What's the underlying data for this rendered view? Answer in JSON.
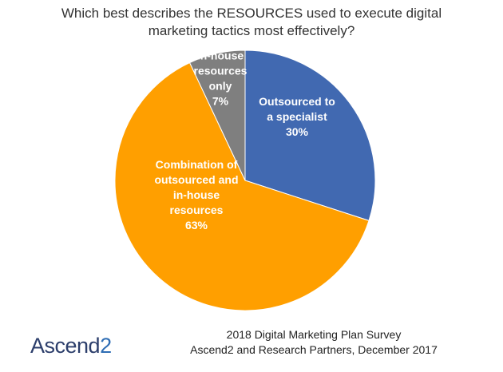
{
  "title_lines": [
    "Which best describes the RESOURCES used to execute digital",
    "marketing tactics most effectively?"
  ],
  "chart_data": {
    "type": "pie",
    "start_angle_deg": 0,
    "direction": "clockwise",
    "slices": [
      {
        "label_lines": [
          "Outsourced to",
          "a specialist",
          "30%"
        ],
        "value": 30,
        "color": "#4169b1",
        "label_color": "#ffffff"
      },
      {
        "label_lines": [
          "Combination of",
          "outsourced and",
          "in-house",
          "resources",
          "63%"
        ],
        "value": 63,
        "color": "#ff9f00",
        "label_color": "#ffffff"
      },
      {
        "label_lines": [
          "In-house",
          "resources",
          "only",
          "7%"
        ],
        "value": 7,
        "color": "#7f7f7f",
        "label_color": "#ffffff"
      }
    ]
  },
  "logo": {
    "text": "Ascend",
    "number": "2"
  },
  "source_lines": [
    "2018 Digital Marketing Plan Survey",
    "Ascend2 and Research Partners, December 2017"
  ]
}
